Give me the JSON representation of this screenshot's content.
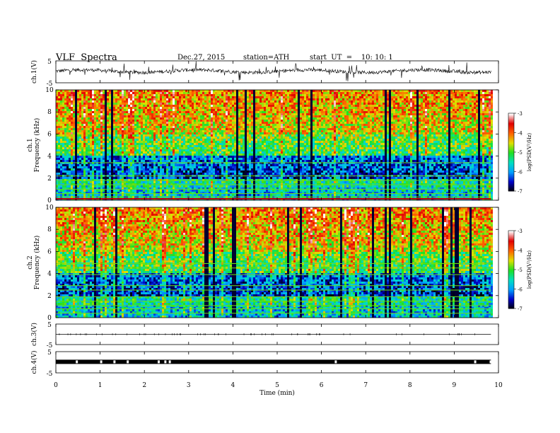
{
  "header": {
    "title": "VLF  Spectra",
    "date": "Dec.27, 2015",
    "station": "station=ATH",
    "start": "start  UT  =    10: 10: 1"
  },
  "chart_data": [
    {
      "type": "line",
      "ylabel": "ch.1(V)",
      "yticks": [
        "5",
        "-5"
      ],
      "ylim": [
        -5,
        5
      ],
      "trace_level": 0.3,
      "xlim": [
        0,
        10
      ]
    },
    {
      "type": "heatmap",
      "ylabel": "ch.1\nFrequency  (kHz)",
      "ylabel_lines": [
        "ch.1",
        "Frequency  (kHz)"
      ],
      "yticks": [
        "0",
        "2",
        "4",
        "6",
        "8",
        "10"
      ],
      "ylim": [
        0,
        10
      ],
      "xlim": [
        0,
        9.83
      ],
      "colorbar": {
        "label": "log(PSD(V²/Hz)",
        "ticks": [
          "-3",
          "-4",
          "-5",
          "-6",
          "-7"
        ],
        "range": [
          -7,
          -3
        ],
        "colors": [
          "#000000",
          "#0000c8",
          "#00a0ff",
          "#00e0c0",
          "#20e020",
          "#e0e000",
          "#ff6000",
          "#e00000",
          "#ffffff"
        ]
      }
    },
    {
      "type": "heatmap",
      "ylabel": "ch.2\nFrequency  (kHz)",
      "ylabel_lines": [
        "ch.2",
        "Frequency  (kHz)"
      ],
      "yticks": [
        "0",
        "2",
        "4",
        "6",
        "8",
        "10"
      ],
      "ylim": [
        0,
        10
      ],
      "xlim": [
        0,
        9.83
      ],
      "colorbar": {
        "label": "log(PSD(V²/Hz)",
        "ticks": [
          "-3",
          "-4",
          "-5",
          "-6",
          "-7"
        ],
        "range": [
          -7,
          -3
        ],
        "colors": [
          "#000000",
          "#0000c8",
          "#00a0ff",
          "#00e0c0",
          "#20e020",
          "#e0e000",
          "#ff6000",
          "#e00000",
          "#ffffff"
        ]
      }
    },
    {
      "type": "line",
      "ylabel": "ch.3(V)",
      "yticks": [
        "5",
        "-5"
      ],
      "ylim": [
        -5,
        5
      ],
      "trace_level": 0.0,
      "xlim": [
        0,
        10
      ]
    },
    {
      "type": "line",
      "ylabel": "ch.4(V)",
      "yticks": [
        "5",
        "-5"
      ],
      "ylim": [
        -5,
        5
      ],
      "trace_level": 0.2,
      "xlim": [
        0,
        10
      ]
    }
  ],
  "xaxis": {
    "label": "Time  (min)",
    "ticks": [
      "0",
      "1",
      "2",
      "3",
      "4",
      "5",
      "6",
      "7",
      "8",
      "9",
      "10"
    ],
    "xlim": [
      0,
      10
    ]
  }
}
